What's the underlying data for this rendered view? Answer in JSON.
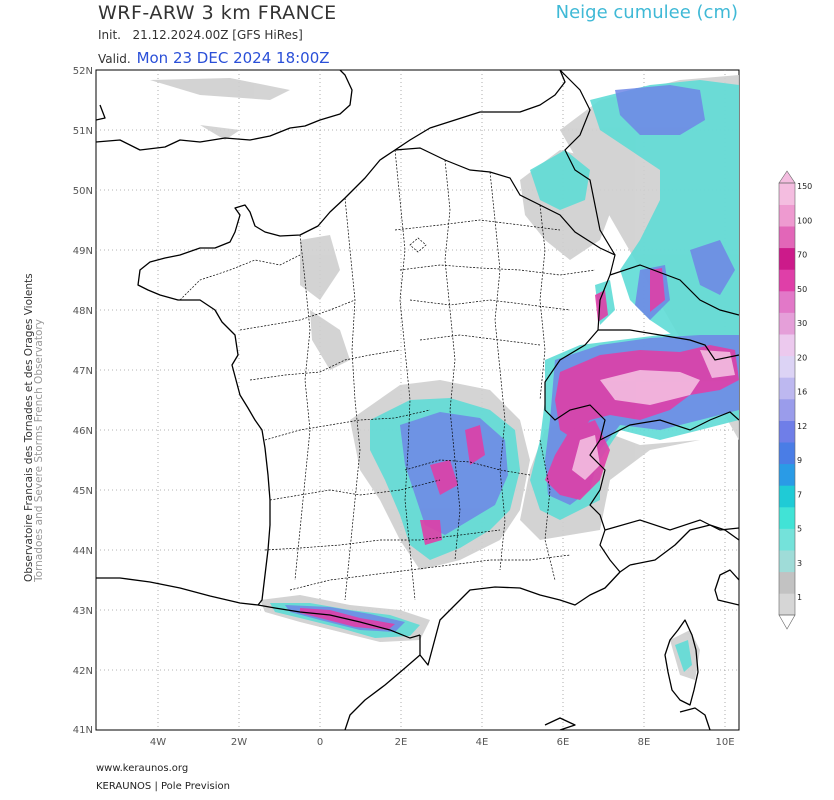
{
  "header": {
    "model_title": "WRF-ARW 3 km FRANCE",
    "init_label": "Init.",
    "init_value": "21.12.2024.00Z [GFS HiRes]",
    "valid_label": "Valid.",
    "valid_value": "Mon 23 DEC 2024 18:00Z",
    "product": "Neige cumulee (cm)"
  },
  "side": {
    "line1": "Observatoire Francais des Tornades et des Orages Violents",
    "line2": "Tornadoes and Severe Storms French Observatory"
  },
  "footer": {
    "website": "www.keraunos.org",
    "credit": "KERAUNOS | Pole Prevision"
  },
  "map": {
    "lat_labels": [
      "52N",
      "51N",
      "50N",
      "49N",
      "48N",
      "47N",
      "46N",
      "45N",
      "44N",
      "43N",
      "42N",
      "41N"
    ],
    "lon_labels": [
      "4W",
      "2W",
      "0",
      "2E",
      "4E",
      "6E",
      "8E",
      "10E"
    ]
  },
  "legend": {
    "levels": [
      "1",
      "3",
      "5",
      "7",
      "9",
      "12",
      "16",
      "20",
      "30",
      "50",
      "70",
      "100",
      "150"
    ],
    "colors": [
      "#d6d6d6",
      "#c2c2c2",
      "#9fdcd8",
      "#74e2da",
      "#41e3d6",
      "#1fcbd6",
      "#2a9be6",
      "#4a7de6",
      "#6f7ee8",
      "#9a9ceb",
      "#bdb8f0",
      "#dcd3f5",
      "#ecc9ee",
      "#e59fd9",
      "#e278c8",
      "#df3fa8",
      "#cc1a8a",
      "#e266b8",
      "#ee9ad0",
      "#f4bde0"
    ]
  }
}
